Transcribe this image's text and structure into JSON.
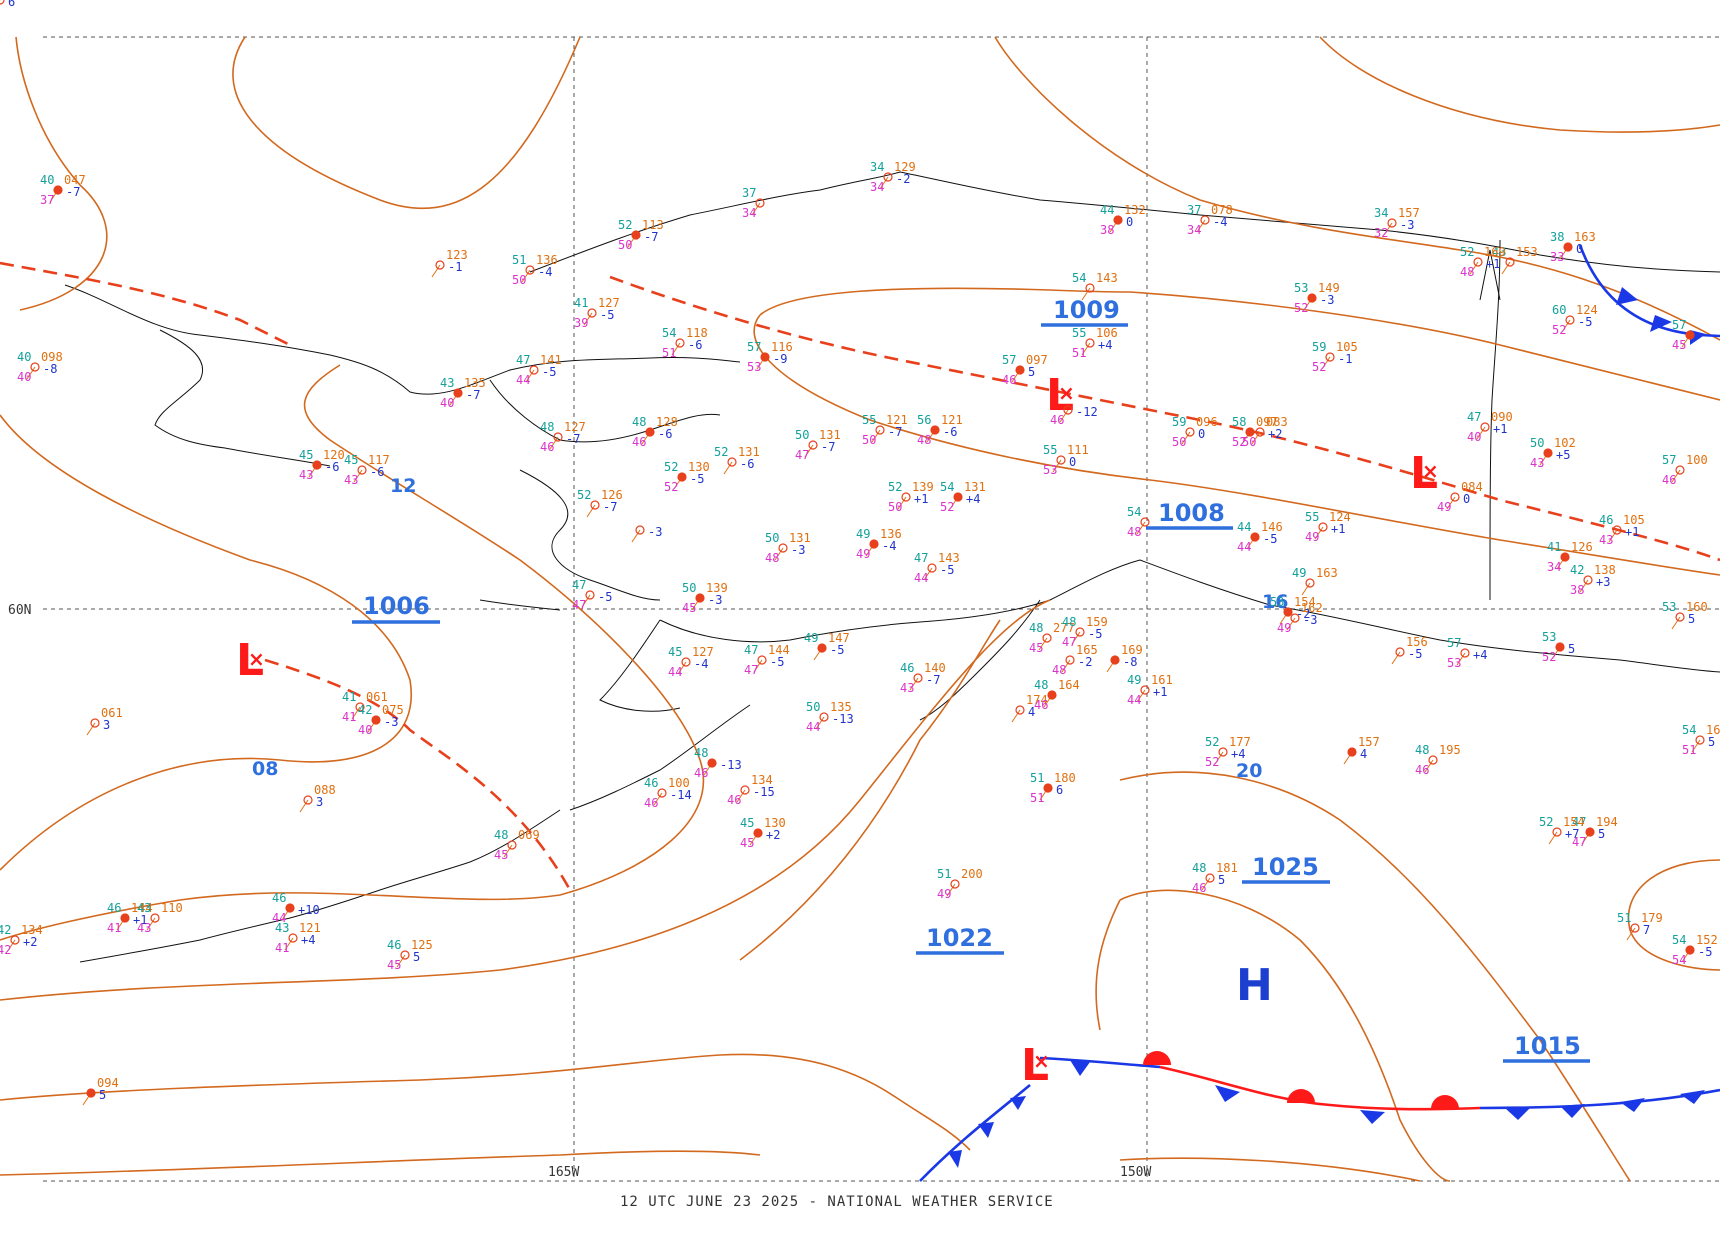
{
  "footer": "12 UTC JUNE 23 2025 - NATIONAL WEATHER SERVICE",
  "grid": {
    "lat": "60N",
    "lon_west": "165W",
    "lon_east": "150W"
  },
  "colors": {
    "isobar": "#d2691e",
    "trough": "#e8401c",
    "pressure_label": "#2f6fde",
    "low": "#ff1a1a",
    "high": "#1d3fd0",
    "cold_front": "#1a38e6",
    "warm_front": "#ff1a1a",
    "temp": "#e07010",
    "dew": "#dd33cc",
    "teal": "#13a19b",
    "coast": "#000000",
    "grid": "#555555"
  },
  "isobar_labels": [
    "1009",
    "1008",
    "1006",
    "1025",
    "1022",
    "1015"
  ],
  "short_labels": [
    "12",
    "16",
    "08",
    "20"
  ],
  "pressure_centers": [
    {
      "type": "L",
      "name": "low-bering"
    },
    {
      "type": "L",
      "name": "low-interior"
    },
    {
      "type": "L",
      "name": "low-yukon"
    },
    {
      "type": "L",
      "name": "low-gulf-front"
    },
    {
      "type": "H",
      "name": "high-gulf"
    }
  ],
  "stations": [
    {
      "t": "40",
      "p": "047",
      "td": "37",
      "tend": "-7"
    },
    {
      "t": "",
      "p": "123",
      "td": "",
      "tend": "-1"
    },
    {
      "t": "51",
      "p": "136",
      "td": "50",
      "tend": "-4"
    },
    {
      "t": "52",
      "p": "113",
      "td": "50",
      "tend": "-7"
    },
    {
      "t": "37",
      "p": "",
      "td": "34",
      "tend": ""
    },
    {
      "t": "34",
      "p": "129",
      "td": "34",
      "tend": "-2"
    },
    {
      "t": "44",
      "p": "132",
      "td": "38",
      "tend": "0"
    },
    {
      "t": "37",
      "p": "078",
      "td": "34",
      "tend": "-4"
    },
    {
      "t": "34",
      "p": "157",
      "td": "32",
      "tend": "-3"
    },
    {
      "t": "38",
      "p": "163",
      "td": "33",
      "tend": "0"
    },
    {
      "t": "43",
      "p": "153",
      "td": "",
      "tend": ""
    },
    {
      "t": "52",
      "p": "169",
      "td": "48",
      "tend": "+1"
    },
    {
      "t": "53",
      "p": "149",
      "td": "52",
      "tend": "-3"
    },
    {
      "t": "60",
      "p": "124",
      "td": "52",
      "tend": "-5"
    },
    {
      "t": "59",
      "p": "105",
      "td": "52",
      "tend": "-1"
    },
    {
      "t": "57",
      "p": "",
      "td": "45",
      "tend": ""
    },
    {
      "t": "41",
      "p": "127",
      "td": "39",
      "tend": "-5"
    },
    {
      "t": "54",
      "p": "118",
      "td": "51",
      "tend": "-6"
    },
    {
      "t": "57",
      "p": "116",
      "td": "53",
      "tend": "-9"
    },
    {
      "t": "54",
      "p": "143",
      "td": "",
      "tend": ""
    },
    {
      "t": "55",
      "p": "106",
      "td": "51",
      "tend": "+4"
    },
    {
      "t": "57",
      "p": "097",
      "td": "46",
      "tend": "5"
    },
    {
      "t": "",
      "p": "",
      "td": "46",
      "tend": "-12"
    },
    {
      "t": "40",
      "p": "098",
      "td": "40",
      "tend": "-8"
    },
    {
      "t": "43",
      "p": "135",
      "td": "40",
      "tend": "-7"
    },
    {
      "t": "47",
      "p": "141",
      "td": "44",
      "tend": "-5"
    },
    {
      "t": "48",
      "p": "127",
      "td": "46",
      "tend": "-7"
    },
    {
      "t": "48",
      "p": "128",
      "td": "46",
      "tend": "-6"
    },
    {
      "t": "50",
      "p": "131",
      "td": "47",
      "tend": "-7"
    },
    {
      "t": "55",
      "p": "121",
      "td": "50",
      "tend": "-7"
    },
    {
      "t": "56",
      "p": "121",
      "td": "48",
      "tend": "-6"
    },
    {
      "t": "55",
      "p": "111",
      "td": "53",
      "tend": "0"
    },
    {
      "t": "59",
      "p": "096",
      "td": "50",
      "tend": "0"
    },
    {
      "t": "58",
      "p": "097",
      "td": "52",
      "tend": ""
    },
    {
      "t": "",
      "p": "083",
      "td": "50",
      "tend": "+2"
    },
    {
      "t": "47",
      "p": "090",
      "td": "40",
      "tend": "+1"
    },
    {
      "t": "50",
      "p": "102",
      "td": "43",
      "tend": "+5"
    },
    {
      "t": "57",
      "p": "100",
      "td": "46",
      "tend": ""
    },
    {
      "t": "",
      "p": "084",
      "td": "49",
      "tend": "0"
    },
    {
      "t": "45",
      "p": "120",
      "td": "43",
      "tend": "-6"
    },
    {
      "t": "45",
      "p": "117",
      "td": "43",
      "tend": "-6"
    },
    {
      "t": "52",
      "p": "131",
      "td": "",
      "tend": "-6"
    },
    {
      "t": "52",
      "p": "130",
      "td": "52",
      "tend": "-5"
    },
    {
      "t": "52",
      "p": "126",
      "td": "",
      "tend": "-7"
    },
    {
      "t": "52",
      "p": "139",
      "td": "50",
      "tend": "+1"
    },
    {
      "t": "54",
      "p": "131",
      "td": "52",
      "tend": "+4"
    },
    {
      "t": "",
      "p": "",
      "td": "",
      "tend": "-3"
    },
    {
      "t": "50",
      "p": "131",
      "td": "48",
      "tend": "-3"
    },
    {
      "t": "49",
      "p": "136",
      "td": "49",
      "tend": "-4"
    },
    {
      "t": "47",
      "p": "143",
      "td": "44",
      "tend": "-5"
    },
    {
      "t": "54",
      "p": "",
      "td": "48",
      "tend": ""
    },
    {
      "t": "44",
      "p": "146",
      "td": "44",
      "tend": "-5"
    },
    {
      "t": "55",
      "p": "124",
      "td": "49",
      "tend": "+1"
    },
    {
      "t": "46",
      "p": "105",
      "td": "43",
      "tend": "+1"
    },
    {
      "t": "41",
      "p": "126",
      "td": "34",
      "tend": ""
    },
    {
      "t": "42",
      "p": "138",
      "td": "38",
      "tend": "+3"
    },
    {
      "t": "47",
      "p": "",
      "td": "47",
      "tend": "-5"
    },
    {
      "t": "50",
      "p": "139",
      "td": "45",
      "tend": "-3"
    },
    {
      "t": "45",
      "p": "127",
      "td": "44",
      "tend": "-4"
    },
    {
      "t": "47",
      "p": "144",
      "td": "47",
      "tend": "-5"
    },
    {
      "t": "49",
      "p": "147",
      "td": "",
      "tend": "-5"
    },
    {
      "t": "46",
      "p": "140",
      "td": "43",
      "tend": "-7"
    },
    {
      "t": "41",
      "p": "061",
      "td": "41",
      "tend": ""
    },
    {
      "t": "42",
      "p": "075",
      "td": "40",
      "tend": "-3"
    },
    {
      "t": "",
      "p": "061",
      "td": "",
      "tend": "3"
    },
    {
      "t": "50",
      "p": "135",
      "td": "44",
      "tend": "-13"
    },
    {
      "t": "48",
      "p": "",
      "td": "46",
      "tend": "-13"
    },
    {
      "t": "46",
      "p": "100",
      "td": "46",
      "tend": "-14"
    },
    {
      "t": "",
      "p": "134",
      "td": "46",
      "tend": "-15"
    },
    {
      "t": "45",
      "p": "130",
      "td": "45",
      "tend": "+2"
    },
    {
      "t": "",
      "p": "088",
      "td": "",
      "tend": "3"
    },
    {
      "t": "48",
      "p": "069",
      "td": "45",
      "tend": ""
    },
    {
      "t": "46",
      "p": "",
      "td": "44",
      "tend": "+10"
    },
    {
      "t": "43",
      "p": "121",
      "td": "41",
      "tend": "+4"
    },
    {
      "t": "46",
      "p": "125",
      "td": "45",
      "tend": "5"
    },
    {
      "t": "46",
      "p": "144",
      "td": "41",
      "tend": "+1"
    },
    {
      "t": "43",
      "p": "110",
      "td": "43",
      "tend": ""
    },
    {
      "t": "42",
      "p": "134",
      "td": "42",
      "tend": "+2"
    },
    {
      "t": "",
      "p": "094",
      "td": "",
      "tend": "5"
    },
    {
      "t": "48",
      "p": "277",
      "td": "45",
      "tend": ""
    },
    {
      "t": "48",
      "p": "159",
      "td": "47",
      "tend": "-5"
    },
    {
      "t": "",
      "p": "169",
      "td": "",
      "tend": "-8"
    },
    {
      "t": "49",
      "p": "161",
      "td": "44",
      "tend": "+1"
    },
    {
      "t": "",
      "p": "174",
      "td": "",
      "tend": "4"
    },
    {
      "t": "48",
      "p": "164",
      "td": "46",
      "tend": ""
    },
    {
      "t": "",
      "p": "165",
      "td": "48",
      "tend": "-2"
    },
    {
      "t": "49",
      "p": "163",
      "td": "",
      "tend": ""
    },
    {
      "t": "53",
      "p": "154",
      "td": "",
      "tend": "-2"
    },
    {
      "t": "",
      "p": "162",
      "td": "49",
      "tend": "-3"
    },
    {
      "t": "",
      "p": "156",
      "td": "",
      "tend": "-5"
    },
    {
      "t": "",
      "p": "157",
      "td": "",
      "tend": "4"
    },
    {
      "t": "52",
      "p": "177",
      "td": "52",
      "tend": "+4"
    },
    {
      "t": "48",
      "p": "195",
      "td": "46",
      "tend": ""
    },
    {
      "t": "51",
      "p": "180",
      "td": "51",
      "tend": "6"
    },
    {
      "t": "48",
      "p": "181",
      "td": "46",
      "tend": "5"
    },
    {
      "t": "51",
      "p": "200",
      "td": "49",
      "tend": ""
    },
    {
      "t": "47",
      "p": "194",
      "td": "47",
      "tend": "5"
    },
    {
      "t": "52",
      "p": "154",
      "td": "",
      "tend": "+7"
    },
    {
      "t": "51",
      "p": "179",
      "td": "",
      "tend": "7"
    },
    {
      "t": "54",
      "p": "152",
      "td": "54",
      "tend": "-5"
    },
    {
      "t": "53",
      "p": "160",
      "td": "",
      "tend": "5"
    },
    {
      "t": "54",
      "p": "160",
      "td": "51",
      "tend": "5"
    },
    {
      "t": "53",
      "p": "",
      "td": "52",
      "tend": "5"
    },
    {
      "t": "57",
      "p": "",
      "td": "53",
      "tend": "+4"
    },
    {
      "t": "",
      "p": "",
      "td": "",
      "tend": "6"
    }
  ]
}
